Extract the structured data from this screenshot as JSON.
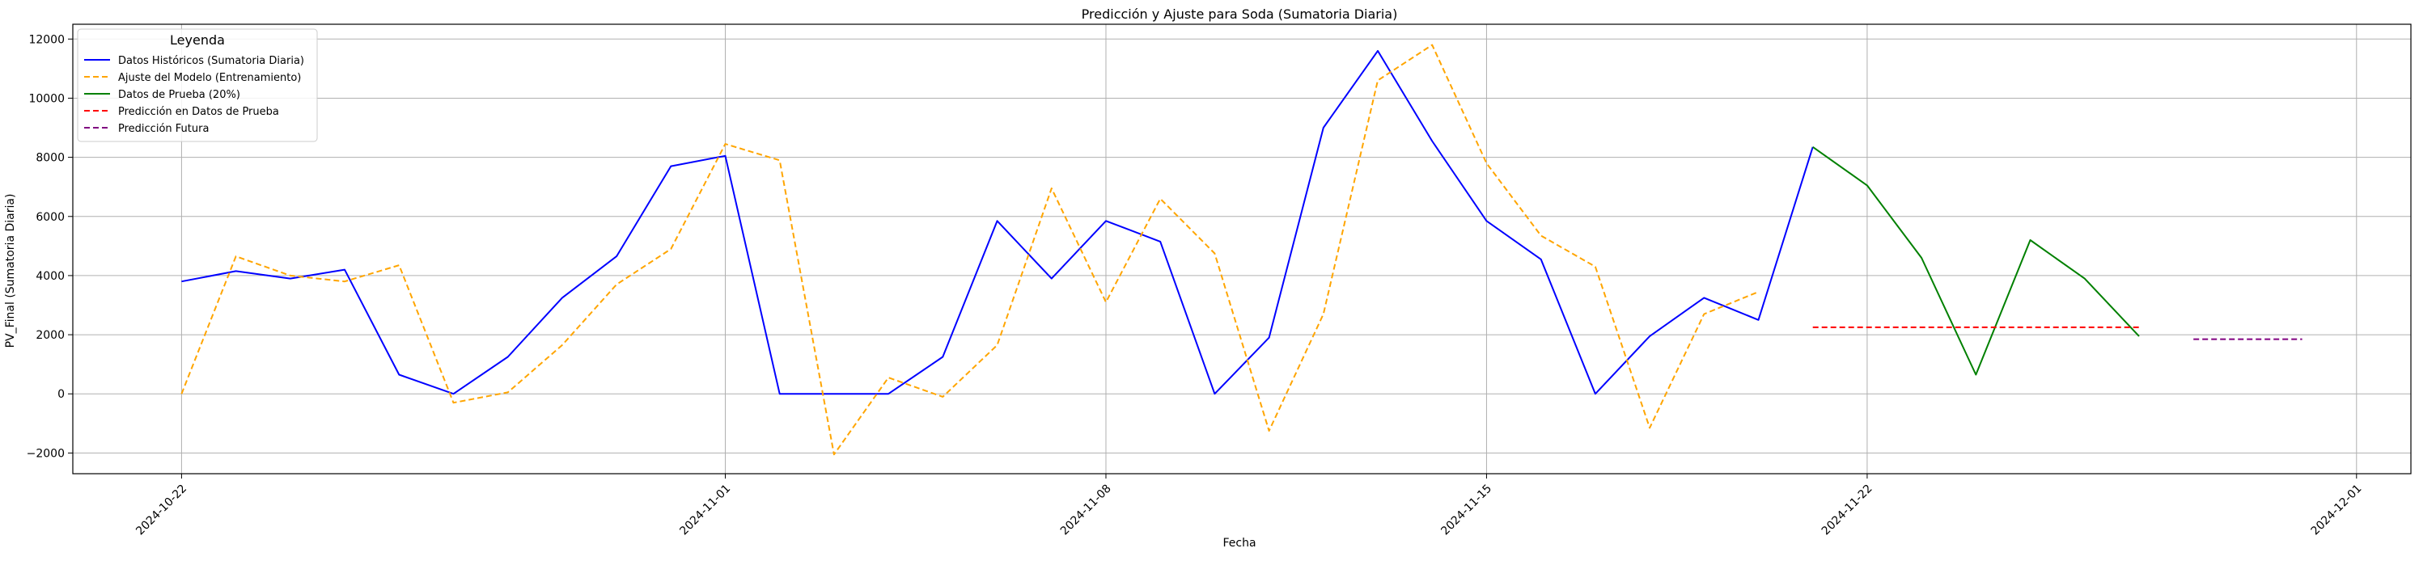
{
  "chart_data": {
    "type": "line",
    "title": "Predicción y Ajuste para Soda (Sumatoria Diaria)",
    "xlabel": "Fecha",
    "ylabel": "PV_Final (Sumatoria Diaria)",
    "x_axis": {
      "kind": "date",
      "range": [
        "2024-10-20",
        "2024-12-02"
      ],
      "ticks": [
        "2024-10-22",
        "2024-11-01",
        "2024-11-08",
        "2024-11-15",
        "2024-11-22",
        "2024-12-01"
      ]
    },
    "y_axis": {
      "range": [
        -2700,
        12500
      ],
      "ticks": [
        -2000,
        0,
        2000,
        4000,
        6000,
        8000,
        10000,
        12000
      ]
    },
    "grid": true,
    "legend": {
      "title": "Leyenda",
      "placement": "top-left"
    },
    "series": [
      {
        "name": "Datos Históricos (Sumatoria Diaria)",
        "color": "#0000ff",
        "dash": "solid",
        "points": [
          [
            "2024-10-22",
            3800
          ],
          [
            "2024-10-23",
            4150
          ],
          [
            "2024-10-24",
            3900
          ],
          [
            "2024-10-25",
            4200
          ],
          [
            "2024-10-26",
            650
          ],
          [
            "2024-10-27",
            0
          ],
          [
            "2024-10-28",
            1250
          ],
          [
            "2024-10-29",
            3250
          ],
          [
            "2024-10-30",
            4650
          ],
          [
            "2024-10-31",
            7700
          ],
          [
            "2024-11-01",
            8050
          ],
          [
            "2024-11-02",
            0
          ],
          [
            "2024-11-03",
            0
          ],
          [
            "2024-11-04",
            0
          ],
          [
            "2024-11-05",
            1250
          ],
          [
            "2024-11-06",
            5850
          ],
          [
            "2024-11-07",
            3900
          ],
          [
            "2024-11-08",
            5850
          ],
          [
            "2024-11-09",
            5150
          ],
          [
            "2024-11-10",
            0
          ],
          [
            "2024-11-11",
            1900
          ],
          [
            "2024-11-12",
            9000
          ],
          [
            "2024-11-13",
            11600
          ],
          [
            "2024-11-14",
            8550
          ],
          [
            "2024-11-15",
            5850
          ],
          [
            "2024-11-16",
            4550
          ],
          [
            "2024-11-17",
            0
          ],
          [
            "2024-11-18",
            1950
          ],
          [
            "2024-11-19",
            3250
          ],
          [
            "2024-11-20",
            2500
          ],
          [
            "2024-11-21",
            8350
          ]
        ]
      },
      {
        "name": "Ajuste del Modelo (Entrenamiento)",
        "color": "#ffa500",
        "dash": "dashed",
        "points": [
          [
            "2024-10-22",
            0
          ],
          [
            "2024-10-23",
            4650
          ],
          [
            "2024-10-24",
            4000
          ],
          [
            "2024-10-25",
            3800
          ],
          [
            "2024-10-26",
            4350
          ],
          [
            "2024-10-27",
            -300
          ],
          [
            "2024-10-28",
            50
          ],
          [
            "2024-10-29",
            1650
          ],
          [
            "2024-10-30",
            3700
          ],
          [
            "2024-10-31",
            4900
          ],
          [
            "2024-11-01",
            8450
          ],
          [
            "2024-11-02",
            7900
          ],
          [
            "2024-11-03",
            -2050
          ],
          [
            "2024-11-04",
            550
          ],
          [
            "2024-11-05",
            -100
          ],
          [
            "2024-11-06",
            1650
          ],
          [
            "2024-11-07",
            6950
          ],
          [
            "2024-11-08",
            3100
          ],
          [
            "2024-11-09",
            6600
          ],
          [
            "2024-11-10",
            4750
          ],
          [
            "2024-11-11",
            -1250
          ],
          [
            "2024-11-12",
            2700
          ],
          [
            "2024-11-13",
            10600
          ],
          [
            "2024-11-14",
            11800
          ],
          [
            "2024-11-15",
            7800
          ],
          [
            "2024-11-16",
            5350
          ],
          [
            "2024-11-17",
            4300
          ],
          [
            "2024-11-18",
            -1150
          ],
          [
            "2024-11-19",
            2700
          ],
          [
            "2024-11-20",
            3450
          ]
        ]
      },
      {
        "name": "Datos de Prueba (20%)",
        "color": "#008000",
        "dash": "solid",
        "points": [
          [
            "2024-11-21",
            8350
          ],
          [
            "2024-11-22",
            7050
          ],
          [
            "2024-11-23",
            4600
          ],
          [
            "2024-11-24",
            650
          ],
          [
            "2024-11-25",
            5200
          ],
          [
            "2024-11-26",
            3900
          ],
          [
            "2024-11-27",
            1950
          ]
        ]
      },
      {
        "name": "Predicción en Datos de Prueba",
        "color": "#ff0000",
        "dash": "dashed",
        "points": [
          [
            "2024-11-21",
            2250
          ],
          [
            "2024-11-22",
            2250
          ],
          [
            "2024-11-23",
            2250
          ],
          [
            "2024-11-24",
            2250
          ],
          [
            "2024-11-25",
            2250
          ],
          [
            "2024-11-26",
            2250
          ],
          [
            "2024-11-27",
            2250
          ]
        ]
      },
      {
        "name": "Predicción Futura",
        "color": "#800080",
        "dash": "dashed",
        "points": [
          [
            "2024-11-28",
            1850
          ],
          [
            "2024-11-29",
            1850
          ],
          [
            "2024-11-30",
            1850
          ]
        ]
      }
    ]
  }
}
